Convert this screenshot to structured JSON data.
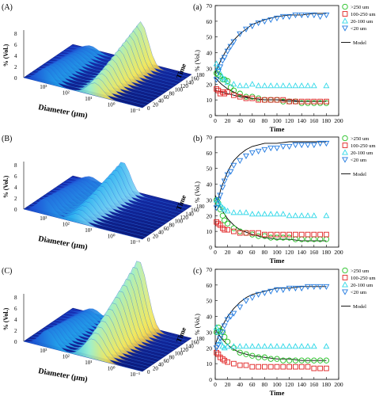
{
  "rows": [
    {
      "left_label": "(A)",
      "right_label": "(a)",
      "surface": {
        "z_label": "% (Vol.)",
        "z_ticks": [
          "0",
          "2",
          "4",
          "6",
          "8"
        ],
        "x_label": "Diameter (µm)",
        "x_ticks": [
          "10³",
          "10²",
          "10¹",
          "10⁰",
          "10⁻¹"
        ],
        "t_label": "Time",
        "t_ticks": [
          "0",
          "20",
          "40",
          "60",
          "80",
          "100",
          "120",
          "140",
          "160",
          "180"
        ]
      }
    },
    {
      "left_label": "(B)",
      "right_label": "(b)",
      "surface": {
        "z_label": "% (Vol.)",
        "z_ticks": [
          "0",
          "2",
          "4",
          "6",
          "8"
        ],
        "x_label": "Diameter (µm)",
        "x_ticks": [
          "10³",
          "10²",
          "10¹",
          "10⁰",
          "10⁻¹"
        ],
        "t_label": "Time",
        "t_ticks": [
          "0",
          "20",
          "40",
          "60",
          "80",
          "100",
          "120",
          "140",
          "160",
          "180"
        ]
      }
    },
    {
      "left_label": "(C)",
      "right_label": "(c)",
      "surface": {
        "z_label": "% (Vol.)",
        "z_ticks": [
          "0",
          "2",
          "4",
          "6",
          "8"
        ],
        "x_label": "Diameter (µm)",
        "x_ticks": [
          "10³",
          "10²",
          "10¹",
          "10⁰",
          "10⁻¹"
        ],
        "t_label": "Time",
        "t_ticks": [
          "0",
          "20",
          "40",
          "60",
          "80",
          "100",
          "120",
          "140",
          "160",
          "180"
        ]
      }
    }
  ],
  "legend": {
    "series": [
      ">250 um",
      "100-250 um",
      "20-100 um",
      "<20 um"
    ],
    "model": "Model"
  },
  "colors": {
    ">250 um": "#22c022",
    "100-250 um": "#e02020",
    "20-100 um": "#30d8e8",
    "<20 um": "#1e78e0",
    "model": "#000000"
  },
  "chart_data": [
    {
      "type": "scatter",
      "xlabel": "Time",
      "ylabel": "% (Vol.)",
      "xlim": [
        0,
        200
      ],
      "ylim": [
        0,
        70
      ],
      "xticks": [
        0,
        20,
        40,
        60,
        80,
        100,
        120,
        140,
        160,
        180,
        200
      ],
      "yticks": [
        0,
        10,
        20,
        30,
        40,
        50,
        60,
        70
      ],
      "series": [
        {
          "name": ">250 um",
          "marker": "circle",
          "x": [
            2,
            5,
            8,
            12,
            15,
            20,
            25,
            30,
            40,
            50,
            60,
            70,
            80,
            90,
            100,
            110,
            120,
            130,
            140,
            150,
            160,
            170,
            180
          ],
          "y": [
            27,
            26,
            25,
            23,
            23,
            22,
            18,
            16,
            14,
            12,
            12,
            11,
            10,
            10,
            10,
            9,
            9,
            9,
            8,
            8,
            8,
            8,
            8
          ]
        },
        {
          "name": "100-250 um",
          "marker": "square",
          "x": [
            2,
            5,
            8,
            12,
            15,
            20,
            30,
            40,
            50,
            60,
            70,
            80,
            90,
            100,
            110,
            120,
            130,
            140,
            150,
            160,
            170,
            180
          ],
          "y": [
            17,
            16,
            14,
            15,
            14,
            15,
            13,
            12,
            11,
            11,
            10,
            10,
            10,
            10,
            10,
            9,
            9,
            9,
            9,
            9,
            9,
            9
          ]
        },
        {
          "name": "20-100 um",
          "marker": "triangle-up",
          "x": [
            2,
            5,
            8,
            12,
            15,
            20,
            30,
            40,
            50,
            60,
            70,
            80,
            90,
            100,
            110,
            120,
            130,
            140,
            150,
            160,
            180
          ],
          "y": [
            33,
            31,
            27,
            24,
            23,
            21,
            20,
            19,
            19,
            20,
            19,
            19,
            19,
            19,
            19,
            19,
            19,
            19,
            19,
            19,
            19
          ]
        },
        {
          "name": "<20 um",
          "marker": "triangle-down",
          "x": [
            2,
            5,
            8,
            12,
            15,
            20,
            25,
            30,
            40,
            50,
            60,
            70,
            80,
            90,
            100,
            110,
            120,
            130,
            140,
            150,
            160,
            170,
            180
          ],
          "y": [
            23,
            28,
            31,
            35,
            37,
            41,
            44,
            47,
            52,
            55,
            57,
            59,
            60,
            61,
            62,
            63,
            63,
            64,
            64,
            64,
            64,
            63,
            64
          ]
        }
      ],
      "model_curves": [
        {
          "x": [
            0,
            10,
            20,
            30,
            40,
            50,
            60,
            80,
            100,
            120,
            140,
            160,
            180
          ],
          "y": [
            27,
            36,
            43,
            48,
            52,
            55,
            58,
            61,
            63,
            64,
            64,
            65,
            65
          ]
        },
        {
          "x": [
            0,
            10,
            20,
            30,
            40,
            60,
            80,
            100,
            120,
            140,
            160,
            180
          ],
          "y": [
            24,
            20,
            17,
            15,
            13,
            11,
            10,
            10,
            9,
            9,
            9,
            9
          ]
        },
        {
          "x": [
            0,
            10,
            20,
            30,
            40,
            60,
            80,
            100,
            120,
            140,
            160,
            180
          ],
          "y": [
            16,
            15,
            14,
            13,
            12,
            11,
            10,
            10,
            10,
            9,
            9,
            9
          ]
        }
      ]
    },
    {
      "type": "scatter",
      "xlabel": "Time",
      "ylabel": "% (Vol.)",
      "xlim": [
        0,
        200
      ],
      "ylim": [
        0,
        70
      ],
      "xticks": [
        0,
        20,
        40,
        60,
        80,
        100,
        120,
        140,
        160,
        180,
        200
      ],
      "yticks": [
        0,
        10,
        20,
        30,
        40,
        50,
        60,
        70
      ],
      "series": [
        {
          "name": ">250 um",
          "marker": "circle",
          "x": [
            2,
            5,
            8,
            12,
            15,
            20,
            30,
            40,
            50,
            60,
            70,
            80,
            90,
            100,
            110,
            120,
            130,
            140,
            150,
            160,
            170,
            180
          ],
          "y": [
            30,
            28,
            24,
            20,
            17,
            15,
            12,
            10,
            9,
            8,
            7,
            7,
            6,
            6,
            6,
            6,
            5,
            5,
            5,
            5,
            5,
            5
          ]
        },
        {
          "name": "100-250 um",
          "marker": "square",
          "x": [
            2,
            5,
            8,
            12,
            15,
            20,
            30,
            40,
            50,
            60,
            70,
            80,
            90,
            100,
            110,
            120,
            130,
            140,
            150,
            160,
            170,
            180
          ],
          "y": [
            16,
            15,
            14,
            12,
            11,
            11,
            10,
            9,
            9,
            9,
            9,
            8,
            8,
            8,
            8,
            8,
            8,
            8,
            8,
            8,
            8,
            8
          ]
        },
        {
          "name": "20-100 um",
          "marker": "triangle-up",
          "x": [
            2,
            5,
            8,
            12,
            15,
            20,
            30,
            40,
            50,
            60,
            70,
            80,
            90,
            100,
            110,
            120,
            130,
            140,
            150,
            160,
            180
          ],
          "y": [
            30,
            28,
            27,
            25,
            24,
            23,
            22,
            22,
            22,
            21,
            21,
            21,
            21,
            21,
            21,
            20,
            20,
            20,
            20,
            20,
            20
          ]
        },
        {
          "name": "<20 um",
          "marker": "triangle-down",
          "x": [
            2,
            5,
            8,
            12,
            15,
            20,
            25,
            30,
            40,
            50,
            60,
            70,
            80,
            90,
            100,
            110,
            120,
            130,
            140,
            150,
            160,
            170,
            180
          ],
          "y": [
            25,
            30,
            33,
            38,
            42,
            46,
            48,
            52,
            55,
            58,
            60,
            61,
            62,
            63,
            63,
            64,
            64,
            65,
            65,
            65,
            65,
            66,
            66
          ]
        }
      ],
      "model_curves": [
        {
          "x": [
            0,
            10,
            20,
            30,
            40,
            50,
            60,
            80,
            100,
            120,
            140,
            160,
            180
          ],
          "y": [
            24,
            38,
            48,
            55,
            59,
            62,
            64,
            66,
            66,
            67,
            67,
            67,
            67
          ]
        },
        {
          "x": [
            0,
            10,
            20,
            30,
            40,
            60,
            80,
            100,
            120,
            140,
            160,
            180
          ],
          "y": [
            33,
            24,
            18,
            14,
            11,
            8,
            6,
            5,
            5,
            4,
            4,
            4
          ]
        }
      ]
    },
    {
      "type": "scatter",
      "xlabel": "Time",
      "ylabel": "% (Vol.)",
      "xlim": [
        0,
        200
      ],
      "ylim": [
        0,
        70
      ],
      "xticks": [
        0,
        20,
        40,
        60,
        80,
        100,
        120,
        140,
        160,
        180,
        200
      ],
      "yticks": [
        0,
        10,
        20,
        30,
        40,
        50,
        60,
        70
      ],
      "series": [
        {
          "name": ">250 um",
          "marker": "circle",
          "x": [
            2,
            5,
            8,
            12,
            15,
            20,
            30,
            40,
            50,
            60,
            70,
            80,
            90,
            100,
            110,
            120,
            130,
            140,
            150,
            160,
            170,
            180
          ],
          "y": [
            30,
            33,
            31,
            30,
            27,
            24,
            20,
            17,
            16,
            15,
            14,
            14,
            13,
            13,
            12,
            12,
            12,
            12,
            12,
            12,
            12,
            12
          ]
        },
        {
          "name": "100-250 um",
          "marker": "square",
          "x": [
            2,
            5,
            8,
            12,
            15,
            20,
            30,
            40,
            50,
            60,
            70,
            80,
            90,
            100,
            110,
            120,
            130,
            140,
            150,
            160,
            170,
            180
          ],
          "y": [
            17,
            16,
            14,
            13,
            12,
            11,
            10,
            9,
            9,
            8,
            8,
            8,
            8,
            8,
            8,
            8,
            8,
            8,
            8,
            7,
            7,
            7
          ]
        },
        {
          "name": "20-100 um",
          "marker": "triangle-up",
          "x": [
            2,
            5,
            8,
            12,
            15,
            20,
            30,
            40,
            50,
            60,
            70,
            80,
            90,
            100,
            110,
            120,
            130,
            140,
            150,
            160,
            180
          ],
          "y": [
            33,
            30,
            24,
            21,
            20,
            21,
            21,
            21,
            21,
            21,
            21,
            21,
            21,
            21,
            21,
            21,
            21,
            21,
            21,
            21,
            21
          ]
        },
        {
          "name": "<20 um",
          "marker": "triangle-down",
          "x": [
            2,
            5,
            8,
            12,
            15,
            20,
            25,
            30,
            40,
            50,
            60,
            70,
            80,
            90,
            100,
            110,
            120,
            130,
            140,
            150,
            160,
            170,
            180
          ],
          "y": [
            20,
            22,
            26,
            30,
            34,
            38,
            40,
            42,
            46,
            50,
            52,
            54,
            55,
            56,
            57,
            57,
            58,
            58,
            58,
            59,
            59,
            59,
            59
          ]
        }
      ],
      "model_curves": [
        {
          "x": [
            0,
            10,
            20,
            30,
            40,
            50,
            60,
            80,
            100,
            120,
            140,
            160,
            180
          ],
          "y": [
            22,
            33,
            40,
            45,
            49,
            52,
            54,
            56,
            58,
            58,
            59,
            59,
            59
          ]
        },
        {
          "x": [
            0,
            10,
            20,
            30,
            40,
            60,
            80,
            100,
            120,
            140,
            160,
            180
          ],
          "y": [
            32,
            26,
            22,
            19,
            17,
            15,
            14,
            13,
            13,
            12,
            12,
            12
          ]
        }
      ]
    }
  ]
}
